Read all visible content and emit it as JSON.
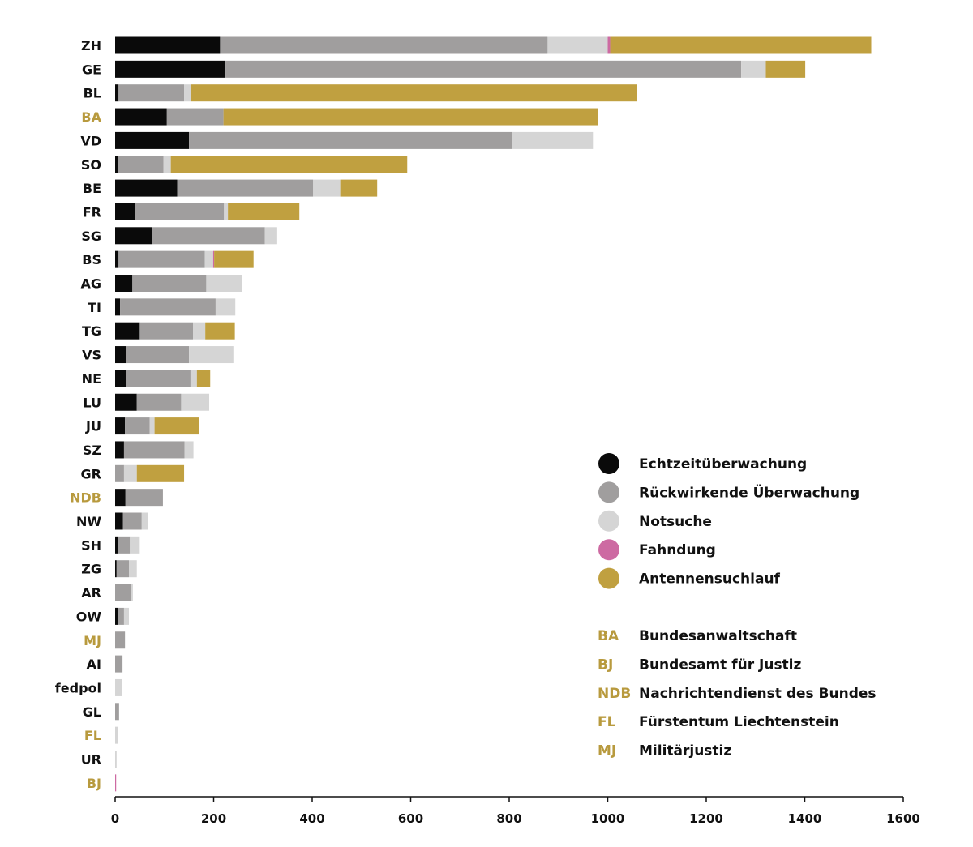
{
  "chart_data": {
    "type": "bar",
    "orientation": "horizontal",
    "stacked": true,
    "title": "",
    "xlabel": "",
    "ylabel": "",
    "xlim": [
      0,
      1600
    ],
    "xticks": [
      0,
      200,
      400,
      600,
      800,
      1000,
      1200,
      1400,
      1600
    ],
    "grid": false,
    "legend_position": "bottom-right",
    "highlight_color": "#b89a3e",
    "default_label_color": "#111111",
    "categories": [
      {
        "label": "ZH",
        "highlight": false
      },
      {
        "label": "GE",
        "highlight": false
      },
      {
        "label": "BL",
        "highlight": false
      },
      {
        "label": "BA",
        "highlight": true
      },
      {
        "label": "VD",
        "highlight": false
      },
      {
        "label": "SO",
        "highlight": false
      },
      {
        "label": "BE",
        "highlight": false
      },
      {
        "label": "FR",
        "highlight": false
      },
      {
        "label": "SG",
        "highlight": false
      },
      {
        "label": "BS",
        "highlight": false
      },
      {
        "label": "AG",
        "highlight": false
      },
      {
        "label": "TI",
        "highlight": false
      },
      {
        "label": "TG",
        "highlight": false
      },
      {
        "label": "VS",
        "highlight": false
      },
      {
        "label": "NE",
        "highlight": false
      },
      {
        "label": "LU",
        "highlight": false
      },
      {
        "label": "JU",
        "highlight": false
      },
      {
        "label": "SZ",
        "highlight": false
      },
      {
        "label": "GR",
        "highlight": false
      },
      {
        "label": "NDB",
        "highlight": true
      },
      {
        "label": "NW",
        "highlight": false
      },
      {
        "label": "SH",
        "highlight": false
      },
      {
        "label": "ZG",
        "highlight": false
      },
      {
        "label": "AR",
        "highlight": false
      },
      {
        "label": "OW",
        "highlight": false
      },
      {
        "label": "MJ",
        "highlight": true
      },
      {
        "label": "AI",
        "highlight": false
      },
      {
        "label": "fedpol",
        "highlight": false
      },
      {
        "label": "GL",
        "highlight": false
      },
      {
        "label": "FL",
        "highlight": true
      },
      {
        "label": "UR",
        "highlight": false
      },
      {
        "label": "BJ",
        "highlight": true
      }
    ],
    "series": [
      {
        "name": "Echtzeitüberwachung",
        "color": "#0a0a0a",
        "values": [
          213,
          224,
          7,
          105,
          150,
          6,
          126,
          40,
          75,
          7,
          35,
          10,
          50,
          23,
          23,
          44,
          20,
          18,
          0,
          21,
          16,
          5,
          3,
          0,
          6,
          0,
          0,
          0,
          0,
          0,
          0,
          0
        ]
      },
      {
        "name": "Rückwirkende Überwachung",
        "color": "#a09e9e",
        "values": [
          665,
          1047,
          133,
          115,
          655,
          92,
          276,
          181,
          229,
          175,
          150,
          194,
          108,
          127,
          130,
          90,
          50,
          123,
          18,
          76,
          38,
          25,
          25,
          33,
          12,
          20,
          15,
          0,
          8,
          0,
          0,
          0
        ]
      },
      {
        "name": "Notsuche",
        "color": "#d5d5d5",
        "values": [
          122,
          50,
          14,
          0,
          165,
          15,
          55,
          8,
          25,
          17,
          73,
          40,
          25,
          90,
          13,
          57,
          10,
          18,
          26,
          0,
          12,
          20,
          16,
          3,
          10,
          0,
          0,
          14,
          0,
          5,
          3,
          0
        ]
      },
      {
        "name": "Fahndung",
        "color": "#cd6aa2",
        "values": [
          5,
          0,
          0,
          0,
          0,
          0,
          0,
          0,
          0,
          2,
          0,
          0,
          0,
          0,
          0,
          0,
          0,
          0,
          0,
          0,
          0,
          0,
          0,
          0,
          0,
          0,
          0,
          0,
          0,
          0,
          0,
          2
        ]
      },
      {
        "name": "Antennensuchlauf",
        "color": "#c0a040",
        "values": [
          530,
          80,
          905,
          760,
          0,
          480,
          75,
          145,
          0,
          80,
          0,
          0,
          60,
          0,
          27,
          0,
          90,
          0,
          96,
          0,
          0,
          0,
          0,
          0,
          0,
          0,
          0,
          0,
          0,
          0,
          0,
          0
        ]
      }
    ]
  },
  "abbreviations": [
    {
      "code": "BA",
      "label": "Bundesanwaltschaft"
    },
    {
      "code": "BJ",
      "label": "Bundesamt für Justiz"
    },
    {
      "code": "NDB",
      "label": "Nachrichtendienst des Bundes"
    },
    {
      "code": "FL",
      "label": "Fürstentum Liechtenstein"
    },
    {
      "code": "MJ",
      "label": "Militärjustiz"
    }
  ]
}
